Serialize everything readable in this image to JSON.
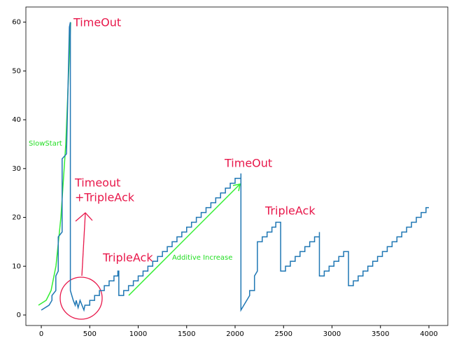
{
  "chart_data": {
    "type": "line",
    "x": [
      0,
      80,
      110,
      110,
      150,
      150,
      175,
      175,
      215,
      215,
      260,
      290,
      300,
      300,
      330,
      350,
      360,
      380,
      400,
      420,
      440,
      450,
      500,
      500,
      550,
      550,
      600,
      600,
      650,
      650,
      700,
      700,
      750,
      750,
      790,
      790,
      800,
      800,
      850,
      850,
      900,
      900,
      950,
      950,
      1000,
      1000,
      1050,
      1050,
      1100,
      1100,
      1150,
      1150,
      1200,
      1200,
      1250,
      1250,
      1300,
      1300,
      1350,
      1350,
      1400,
      1400,
      1450,
      1450,
      1500,
      1500,
      1550,
      1550,
      1600,
      1600,
      1650,
      1650,
      1700,
      1700,
      1750,
      1750,
      1800,
      1800,
      1850,
      1850,
      1900,
      1900,
      1950,
      1950,
      2000,
      2000,
      2060,
      2060,
      2060,
      2120,
      2150,
      2150,
      2200,
      2200,
      2230,
      2230,
      2280,
      2280,
      2330,
      2330,
      2380,
      2380,
      2420,
      2420,
      2470,
      2470,
      2520,
      2520,
      2570,
      2570,
      2620,
      2620,
      2670,
      2670,
      2720,
      2720,
      2770,
      2770,
      2820,
      2820,
      2870,
      2870,
      2870,
      2920,
      2920,
      2970,
      2970,
      3020,
      3020,
      3070,
      3070,
      3120,
      3120,
      3170,
      3170,
      3220,
      3220,
      3270,
      3270,
      3320,
      3320,
      3370,
      3370,
      3420,
      3420,
      3470,
      3470,
      3520,
      3520,
      3570,
      3570,
      3620,
      3620,
      3670,
      3670,
      3720,
      3720,
      3770,
      3770,
      3820,
      3820,
      3870,
      3870,
      3920,
      3920,
      3970,
      3970,
      4000
    ],
    "series": [
      {
        "color": "#1f77b4",
        "values": [
          1,
          2,
          3,
          4,
          5,
          8,
          9,
          16,
          17,
          32,
          33,
          59,
          60,
          5,
          3,
          2,
          3,
          1.5,
          3,
          2,
          1,
          2,
          2,
          3,
          3,
          4,
          4,
          5,
          5,
          6,
          6,
          7,
          7,
          8,
          8,
          9,
          9,
          4,
          4,
          5,
          5,
          6,
          6,
          7,
          7,
          8,
          8,
          9,
          9,
          10,
          10,
          11,
          11,
          12,
          12,
          13,
          13,
          14,
          14,
          15,
          15,
          16,
          16,
          17,
          17,
          18,
          18,
          19,
          19,
          20,
          20,
          21,
          21,
          22,
          22,
          23,
          23,
          24,
          24,
          25,
          25,
          26,
          26,
          27,
          27,
          28,
          28,
          29,
          1,
          3,
          4,
          5,
          5,
          8,
          9,
          15,
          15,
          16,
          16,
          17,
          17,
          18,
          18,
          19,
          19,
          9,
          9,
          10,
          10,
          11,
          11,
          12,
          12,
          13,
          13,
          14,
          14,
          15,
          15,
          16,
          16,
          17,
          8,
          8,
          9,
          9,
          10,
          10,
          11,
          11,
          12,
          12,
          13,
          13,
          6,
          6,
          7,
          7,
          8,
          8,
          9,
          9,
          10,
          10,
          11,
          11,
          12,
          12,
          13,
          13,
          14,
          14,
          15,
          15,
          16,
          16,
          17,
          17,
          18,
          18,
          19,
          19,
          20,
          20,
          21,
          21,
          22,
          22
        ]
      }
    ],
    "xlim": [
      -159,
      4195
    ],
    "ylim": [
      -2.15,
      63.1
    ],
    "xticks": [
      0,
      500,
      1000,
      1500,
      2000,
      2500,
      3000,
      3500,
      4000
    ],
    "yticks": [
      0,
      10,
      20,
      30,
      40,
      50,
      60
    ],
    "annotations": [
      "TimeOut",
      "Timeout",
      "+TripleAck",
      "TripleAck",
      "TimeOut",
      "TripleAck",
      "Additive Increase",
      "SlowStart"
    ]
  }
}
